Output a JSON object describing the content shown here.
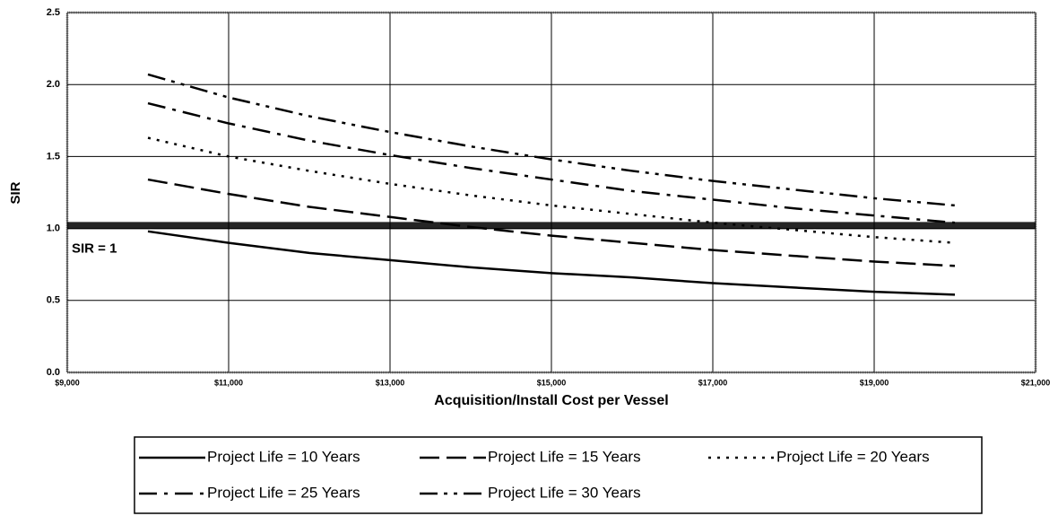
{
  "chart_data": {
    "type": "line",
    "x_label": "Acquisition/Install Cost per Vessel",
    "y_label": "SIR",
    "x": [
      10000,
      11000,
      12000,
      13000,
      14000,
      15000,
      16000,
      17000,
      18000,
      19000,
      20000
    ],
    "series": [
      {
        "name": "Project Life = 10 Years",
        "color": "#000000",
        "dash": "solid",
        "values": [
          0.98,
          0.9,
          0.83,
          0.78,
          0.73,
          0.69,
          0.66,
          0.62,
          0.59,
          0.56,
          0.54
        ]
      },
      {
        "name": "Project Life = 15 Years",
        "color": "#000000",
        "dash": "dash",
        "values": [
          1.34,
          1.24,
          1.15,
          1.08,
          1.01,
          0.95,
          0.9,
          0.85,
          0.81,
          0.77,
          0.74
        ]
      },
      {
        "name": "Project Life = 20 Years",
        "color": "#000000",
        "dash": "dot",
        "values": [
          1.63,
          1.5,
          1.4,
          1.31,
          1.23,
          1.16,
          1.1,
          1.04,
          0.99,
          0.94,
          0.9
        ]
      },
      {
        "name": "Project Life = 25 Years",
        "color": "#000000",
        "dash": "dashdot",
        "values": [
          1.87,
          1.73,
          1.61,
          1.51,
          1.42,
          1.34,
          1.26,
          1.2,
          1.14,
          1.09,
          1.04
        ]
      },
      {
        "name": "Project Life = 30 Years",
        "color": "#000000",
        "dash": "dashdotdot",
        "values": [
          2.07,
          1.91,
          1.78,
          1.67,
          1.57,
          1.48,
          1.4,
          1.33,
          1.27,
          1.21,
          1.16
        ]
      }
    ],
    "reference_line": {
      "value": 1.02,
      "label": "SIR = 1",
      "color": "#000000"
    },
    "xlim": [
      9000,
      21000
    ],
    "xticks": [
      {
        "value": 9000,
        "label": "$9,000"
      },
      {
        "value": 11000,
        "label": "$11,000"
      },
      {
        "value": 13000,
        "label": "$13,000"
      },
      {
        "value": 15000,
        "label": "$15,000"
      },
      {
        "value": 17000,
        "label": "$17,000"
      },
      {
        "value": 19000,
        "label": "$19,000"
      },
      {
        "value": 21000,
        "label": "$21,000"
      }
    ],
    "ylim": [
      0,
      2.5
    ],
    "yticks": [
      {
        "value": 0,
        "label": "0.0"
      },
      0.5,
      {
        "value": 1,
        "label": "1.0"
      },
      1.5,
      {
        "value": 2,
        "label": "2.0"
      },
      2.5
    ],
    "grid": true,
    "legend": "bottom"
  }
}
